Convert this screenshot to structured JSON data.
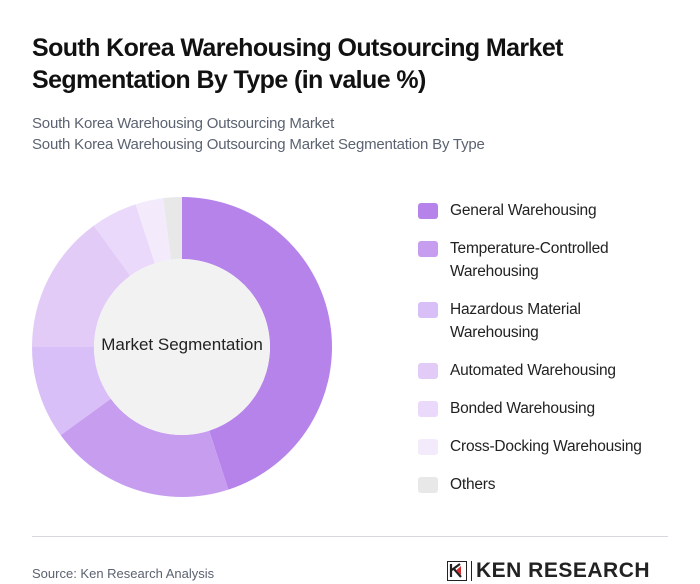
{
  "header": {
    "title": "South Korea Warehousing Outsourcing Market Segmentation By Type (in value %)",
    "subtitle_line1": "South Korea Warehousing Outsourcing Market",
    "subtitle_line2": "South Korea Warehousing Outsourcing Market Segmentation By Type"
  },
  "chart_data": {
    "type": "pie",
    "subtype": "donut",
    "title": "South Korea Warehousing Outsourcing Market Segmentation By Type (in value %)",
    "center_label": "Market Segmentation",
    "categories": [
      "General Warehousing",
      "Temperature-Controlled Warehousing",
      "Hazardous Material Warehousing",
      "Automated Warehousing",
      "Bonded Warehousing",
      "Cross-Docking Warehousing",
      "Others"
    ],
    "values": [
      45,
      20,
      10,
      15,
      5,
      3,
      2
    ],
    "colors": [
      "#b583ea",
      "#c79df0",
      "#d9bff7",
      "#e2cbf7",
      "#ead9fa",
      "#f3ebfc",
      "#e8e8e8"
    ],
    "legend_position": "right",
    "start_angle": "top, clockwise"
  },
  "legend": {
    "items": [
      {
        "label": "General Warehousing",
        "color": "#b583ea"
      },
      {
        "label": "Temperature-Controlled Warehousing",
        "color": "#c79df0"
      },
      {
        "label": "Hazardous Material Warehousing",
        "color": "#d9bff7"
      },
      {
        "label": "Automated Warehousing",
        "color": "#e2cbf7"
      },
      {
        "label": "Bonded Warehousing",
        "color": "#ead9fa"
      },
      {
        "label": "Cross-Docking Warehousing",
        "color": "#f3ebfc"
      },
      {
        "label": "Others",
        "color": "#e8e8e8"
      }
    ]
  },
  "footer": {
    "source": "Source: Ken Research Analysis",
    "brand": "KEN RESEARCH"
  }
}
